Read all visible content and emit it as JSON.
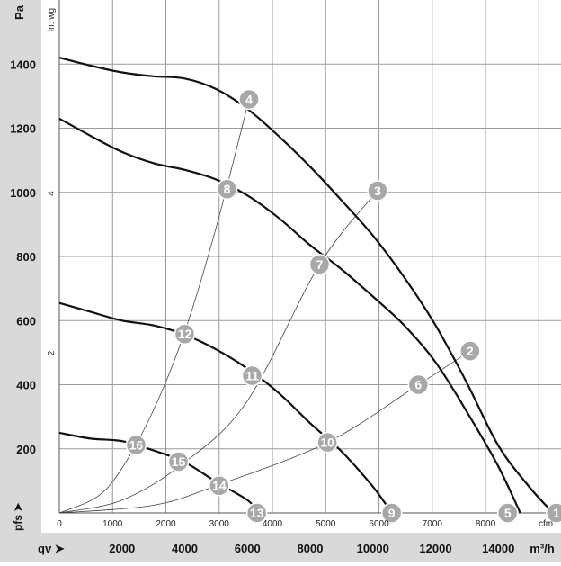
{
  "chart_data": {
    "type": "line",
    "title": "",
    "y_axis_left": {
      "label": "Pa",
      "ticks": [
        200,
        400,
        600,
        800,
        1000,
        1200,
        1400
      ],
      "range": [
        0,
        1400
      ]
    },
    "y_axis_secondary": {
      "label": "in. wg",
      "ticks": [
        2,
        4
      ]
    },
    "x_axis_inner": {
      "unit": "cfm",
      "ticks": [
        0,
        1000,
        2000,
        3000,
        4000,
        5000,
        6000,
        7000,
        8000
      ]
    },
    "x_axis_outer": {
      "label": "qv",
      "unit": "m³/h",
      "ticks": [
        2000,
        4000,
        6000,
        8000,
        10000,
        12000,
        14000
      ],
      "range": [
        0,
        16000
      ]
    },
    "pressure_label": "pfs",
    "grid": true,
    "x_unit": "m³/h",
    "y_unit": "Pa",
    "series": [
      {
        "points": [
          [
            0,
            1420
          ],
          [
            1000,
            1395
          ],
          [
            2000,
            1374
          ],
          [
            3000,
            1362
          ],
          [
            4000,
            1355
          ],
          [
            5000,
            1322
          ],
          [
            6000,
            1260
          ],
          [
            7000,
            1175
          ],
          [
            8000,
            1080
          ],
          [
            9000,
            975
          ],
          [
            10000,
            865
          ],
          [
            11000,
            735
          ],
          [
            12000,
            585
          ],
          [
            13000,
            405
          ],
          [
            14000,
            210
          ],
          [
            15000,
            80
          ],
          [
            15750,
            0
          ]
        ],
        "markers": [
          {
            "id": "4",
            "q": 6050,
            "p": 1290
          },
          {
            "id": "3",
            "q": 10150,
            "p": 1005
          },
          {
            "id": "2",
            "q": 13100,
            "p": 505
          },
          {
            "id": "1",
            "q": 15850,
            "p": 0
          }
        ]
      },
      {
        "points": [
          [
            0,
            1230
          ],
          [
            1000,
            1176
          ],
          [
            2000,
            1126
          ],
          [
            3000,
            1091
          ],
          [
            4000,
            1070
          ],
          [
            5000,
            1040
          ],
          [
            6000,
            990
          ],
          [
            7000,
            920
          ],
          [
            8000,
            835
          ],
          [
            9000,
            760
          ],
          [
            10000,
            675
          ],
          [
            11000,
            585
          ],
          [
            12000,
            470
          ],
          [
            13000,
            315
          ],
          [
            14000,
            145
          ],
          [
            14700,
            0
          ]
        ],
        "markers": [
          {
            "id": "8",
            "q": 5350,
            "p": 1010
          },
          {
            "id": "7",
            "q": 8300,
            "p": 775
          },
          {
            "id": "6",
            "q": 11450,
            "p": 400
          },
          {
            "id": "5",
            "q": 14300,
            "p": 0
          }
        ]
      },
      {
        "points": [
          [
            0,
            655
          ],
          [
            1000,
            627
          ],
          [
            2000,
            600
          ],
          [
            3000,
            585
          ],
          [
            4000,
            556
          ],
          [
            5000,
            510
          ],
          [
            6000,
            450
          ],
          [
            7000,
            374
          ],
          [
            8000,
            280
          ],
          [
            9000,
            192
          ],
          [
            10000,
            82
          ],
          [
            10600,
            0
          ]
        ],
        "markers": [
          {
            "id": "12",
            "q": 4000,
            "p": 558
          },
          {
            "id": "11",
            "q": 6150,
            "p": 428
          },
          {
            "id": "10",
            "q": 8550,
            "p": 220
          },
          {
            "id": "9",
            "q": 10600,
            "p": 0
          }
        ]
      },
      {
        "points": [
          [
            0,
            250
          ],
          [
            1000,
            232
          ],
          [
            2000,
            224
          ],
          [
            3000,
            195
          ],
          [
            4000,
            158
          ],
          [
            5000,
            97
          ],
          [
            6000,
            40
          ],
          [
            6350,
            0
          ]
        ],
        "markers": [
          {
            "id": "16",
            "q": 2450,
            "p": 212
          },
          {
            "id": "15",
            "q": 3800,
            "p": 160
          },
          {
            "id": "14",
            "q": 5100,
            "p": 85
          },
          {
            "id": "13",
            "q": 6300,
            "p": 0
          }
        ]
      }
    ],
    "system_curves": [
      {
        "through": "4",
        "points": [
          [
            0,
            0
          ],
          [
            1200,
            50
          ],
          [
            2000,
            140
          ],
          [
            3000,
            320
          ],
          [
            4000,
            565
          ],
          [
            5000,
            890
          ],
          [
            6050,
            1290
          ]
        ]
      },
      {
        "through": "3",
        "points": [
          [
            0,
            0
          ],
          [
            2000,
            40
          ],
          [
            4000,
            158
          ],
          [
            6000,
            350
          ],
          [
            8300,
            775
          ],
          [
            10150,
            1005
          ]
        ]
      },
      {
        "through": "2",
        "points": [
          [
            0,
            0
          ],
          [
            3000,
            24
          ],
          [
            5000,
            85
          ],
          [
            8550,
            220
          ],
          [
            11450,
            400
          ],
          [
            13100,
            505
          ]
        ]
      }
    ]
  }
}
